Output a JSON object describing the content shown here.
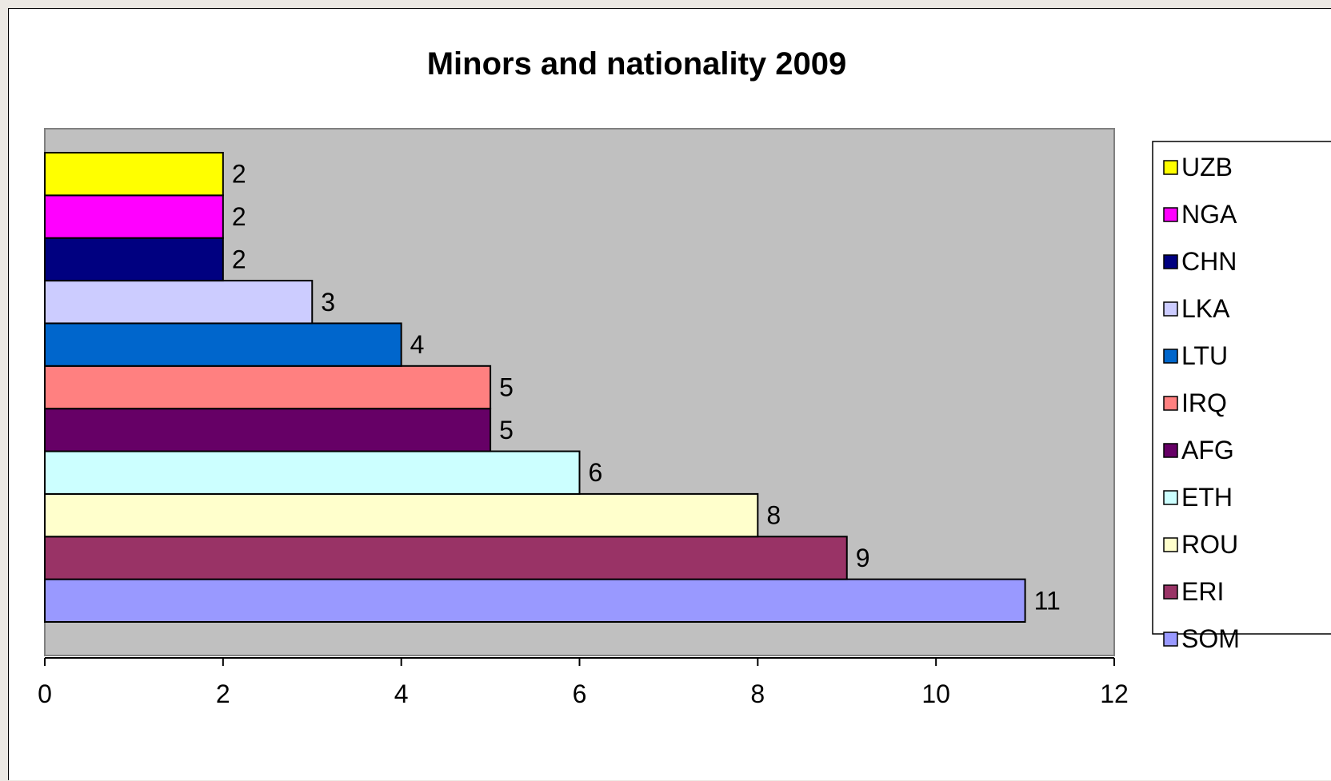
{
  "chart_data": {
    "type": "bar",
    "orientation": "horizontal",
    "title": "Minors and nationality 2009",
    "xlabel": "",
    "ylabel": "",
    "xlim": [
      0,
      12
    ],
    "x_ticks": [
      0,
      2,
      4,
      6,
      8,
      10,
      12
    ],
    "grid": false,
    "legend_position": "right",
    "plot_background": "#c0c0c0",
    "series": [
      {
        "name": "SOM",
        "value": 11,
        "color": "#9999ff"
      },
      {
        "name": "ERI",
        "value": 9,
        "color": "#993366"
      },
      {
        "name": "ROU",
        "value": 8,
        "color": "#ffffcc"
      },
      {
        "name": "ETH",
        "value": 6,
        "color": "#ccffff"
      },
      {
        "name": "AFG",
        "value": 5,
        "color": "#660066"
      },
      {
        "name": "IRQ",
        "value": 5,
        "color": "#ff8080"
      },
      {
        "name": "LTU",
        "value": 4,
        "color": "#0066cc"
      },
      {
        "name": "LKA",
        "value": 3,
        "color": "#ccccff"
      },
      {
        "name": "CHN",
        "value": 2,
        "color": "#000080"
      },
      {
        "name": "NGA",
        "value": 2,
        "color": "#ff00ff"
      },
      {
        "name": "UZB",
        "value": 2,
        "color": "#ffff00"
      }
    ]
  }
}
